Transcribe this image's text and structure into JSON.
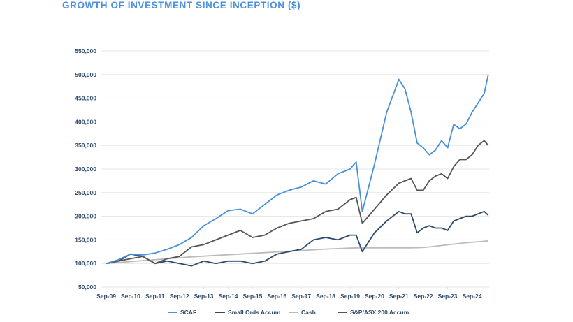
{
  "chart_data": {
    "type": "line",
    "title": "GROWTH OF INVESTMENT SINCE INCEPTION ($)",
    "xlabel": "",
    "ylabel": "",
    "ylim": [
      50000,
      550000
    ],
    "yticks": [
      50000,
      100000,
      150000,
      200000,
      250000,
      300000,
      350000,
      400000,
      450000,
      500000,
      550000
    ],
    "ytick_labels": [
      "50,000",
      "100,000",
      "150,000",
      "200,000",
      "250,000",
      "300,000",
      "350,000",
      "400,000",
      "450,000",
      "500,000",
      "550,000"
    ],
    "xtick_labels": [
      "Sep-09",
      "Sep-10",
      "Sep-11",
      "Sep-12",
      "Sep-13",
      "Sep-14",
      "Sep-15",
      "Sep-16",
      "Sep-17",
      "Sep-18",
      "Sep-19",
      "Sep-20",
      "Sep-21",
      "Sep-22",
      "Sep-23",
      "Sep-24"
    ],
    "grid": "horizontal",
    "legend": "bottom",
    "x": [
      "2009-09",
      "2010-03",
      "2010-09",
      "2011-03",
      "2011-09",
      "2012-03",
      "2012-09",
      "2013-03",
      "2013-09",
      "2014-03",
      "2014-09",
      "2015-03",
      "2015-09",
      "2016-03",
      "2016-09",
      "2017-03",
      "2017-09",
      "2018-03",
      "2018-09",
      "2019-03",
      "2019-09",
      "2019-12",
      "2020-03",
      "2020-09",
      "2021-03",
      "2021-09",
      "2021-12",
      "2022-03",
      "2022-06",
      "2022-09",
      "2022-12",
      "2023-03",
      "2023-06",
      "2023-09",
      "2023-12",
      "2024-03",
      "2024-06",
      "2024-09",
      "2024-12",
      "2025-03",
      "2025-05"
    ],
    "series": [
      {
        "name": "SCAF",
        "color": "#4a90d9",
        "values": [
          100000,
          108000,
          120000,
          118000,
          122000,
          130000,
          140000,
          155000,
          180000,
          195000,
          212000,
          215000,
          205000,
          225000,
          245000,
          255000,
          262000,
          275000,
          268000,
          290000,
          300000,
          315000,
          210000,
          310000,
          420000,
          490000,
          470000,
          420000,
          355000,
          345000,
          330000,
          340000,
          360000,
          345000,
          395000,
          385000,
          395000,
          420000,
          440000,
          460000,
          500000
        ]
      },
      {
        "name": "Small Ords Accum",
        "color": "#2e4a6b",
        "values": [
          100000,
          105000,
          120000,
          115000,
          100000,
          105000,
          100000,
          95000,
          105000,
          100000,
          105000,
          105000,
          100000,
          105000,
          120000,
          125000,
          130000,
          150000,
          155000,
          150000,
          160000,
          160000,
          125000,
          165000,
          190000,
          210000,
          205000,
          205000,
          165000,
          175000,
          180000,
          175000,
          175000,
          170000,
          190000,
          195000,
          200000,
          200000,
          205000,
          210000,
          202000
        ]
      },
      {
        "name": "Cash",
        "color": "#bbbbbb",
        "values": [
          100000,
          102000,
          104000,
          106000,
          108000,
          110000,
          112000,
          114000,
          115500,
          117000,
          118500,
          120000,
          121500,
          123000,
          124500,
          126000,
          127500,
          129000,
          130500,
          131500,
          132500,
          133000,
          133000,
          133000,
          133000,
          133000,
          133000,
          133000,
          133500,
          134000,
          135000,
          136500,
          138000,
          139500,
          141000,
          142500,
          144000,
          145000,
          146000,
          147000,
          148000
        ]
      },
      {
        "name": "S&P/ASX 200 Accum",
        "color": "#555555",
        "values": [
          100000,
          105000,
          110000,
          115000,
          100000,
          110000,
          115000,
          135000,
          140000,
          150000,
          160000,
          170000,
          155000,
          160000,
          175000,
          185000,
          190000,
          195000,
          210000,
          215000,
          235000,
          240000,
          185000,
          215000,
          245000,
          270000,
          275000,
          280000,
          255000,
          255000,
          275000,
          285000,
          290000,
          280000,
          305000,
          320000,
          320000,
          330000,
          350000,
          360000,
          350000
        ]
      }
    ]
  }
}
